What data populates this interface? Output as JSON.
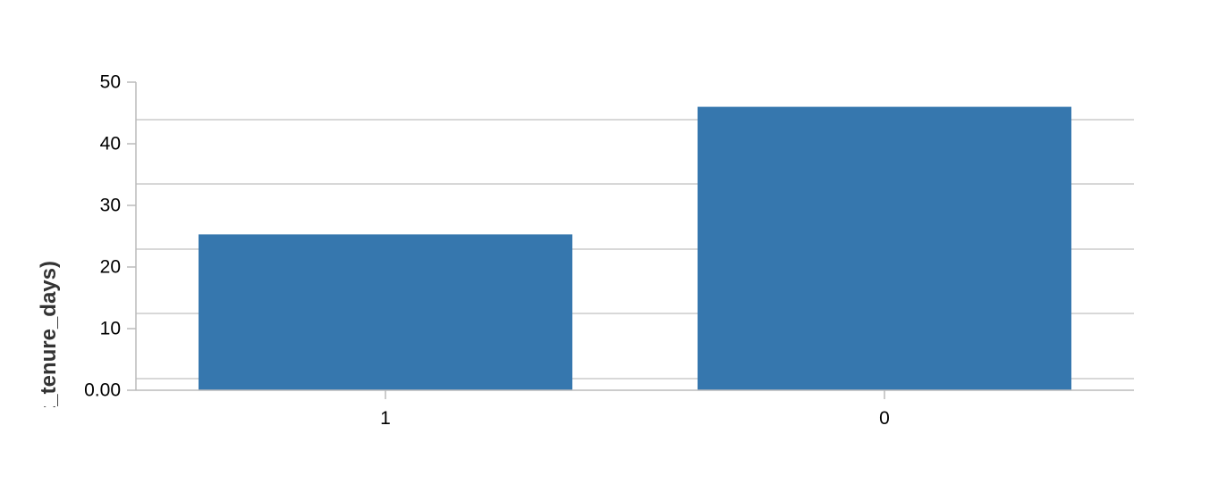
{
  "chart_data": {
    "type": "bar",
    "categories": [
      "1",
      "0"
    ],
    "values": [
      25.3,
      46.0
    ],
    "title": "",
    "xlabel": "",
    "ylabel": "avg(ft_tenure_days)",
    "ylim": [
      0,
      50
    ],
    "y_ticks": [
      0,
      10,
      20,
      30,
      40,
      50
    ],
    "y_tick_labels": [
      "0.00",
      "10",
      "20",
      "30",
      "40",
      "50"
    ],
    "grid": true,
    "legend": "none",
    "colors": {
      "bar": "#3677AE",
      "grid": "#CCCCCC",
      "axis": "#BBBBBB",
      "text": "#000000",
      "axis_title": "#333333"
    }
  }
}
